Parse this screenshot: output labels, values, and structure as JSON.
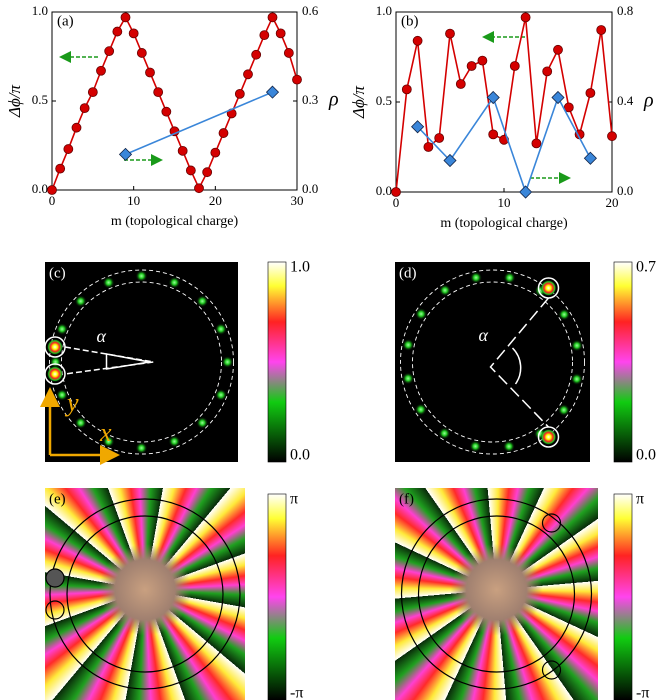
{
  "chart_data": [
    {
      "type": "line",
      "label": "(a)",
      "ylabel": "Δϕ/π",
      "y2label": "ρ",
      "xlabel": "m (topological charge)",
      "x": [
        0,
        1,
        2,
        3,
        4,
        5,
        6,
        7,
        8,
        9,
        10,
        11,
        12,
        13,
        14,
        15,
        16,
        17,
        18,
        19,
        20,
        21,
        22,
        23,
        24,
        25,
        26,
        27,
        28,
        29,
        30
      ],
      "series": [
        {
          "color": "#d40000",
          "marker": "circle",
          "values": [
            0,
            0.12,
            0.23,
            0.35,
            0.46,
            0.55,
            0.67,
            0.78,
            0.89,
            0.97,
            0.88,
            0.77,
            0.66,
            0.55,
            0.44,
            0.33,
            0.22,
            0.11,
            0.01,
            0.1,
            0.21,
            0.32,
            0.43,
            0.54,
            0.65,
            0.76,
            0.87,
            0.97,
            0.88,
            0.77,
            0.62
          ]
        },
        {
          "color": "#3a86d9",
          "marker": "diamond",
          "axis": "y2",
          "x": [
            9,
            27
          ],
          "values": [
            0.12,
            0.33
          ]
        }
      ],
      "xlim": [
        0,
        30
      ],
      "xticks": [
        0,
        10,
        20,
        30
      ],
      "ylim": [
        0,
        1
      ],
      "yticks": [
        {
          "value": 0,
          "label": "0.0"
        },
        {
          "value": 0.5,
          "label": "0.5"
        },
        {
          "value": 1,
          "label": "1.0"
        }
      ],
      "y2lim": [
        0,
        0.6
      ],
      "y2ticks": [
        {
          "value": 0,
          "label": "0.0"
        },
        {
          "value": 0.3,
          "label": "0.3"
        },
        {
          "value": 0.6,
          "label": "0.6"
        }
      ]
    },
    {
      "type": "line",
      "label": "(b)",
      "ylabel": "Δϕ/π",
      "y2label": "ρ",
      "xlabel": "m (topological charge)",
      "x": [
        0,
        1,
        2,
        3,
        4,
        5,
        6,
        7,
        8,
        9,
        10,
        11,
        12,
        13,
        14,
        15,
        16,
        17,
        18,
        19,
        20
      ],
      "series": [
        {
          "color": "#d40000",
          "marker": "circle",
          "values": [
            0,
            0.57,
            0.84,
            0.25,
            0.3,
            0.88,
            0.6,
            0.7,
            0.73,
            0.32,
            0.29,
            0.7,
            0.97,
            0.27,
            0.67,
            0.79,
            0.47,
            0.32,
            0.55,
            0.9,
            0.31
          ]
        },
        {
          "color": "#3a86d9",
          "marker": "diamond",
          "axis": "y2",
          "x": [
            2,
            5,
            9,
            12,
            15,
            18
          ],
          "values": [
            0.29,
            0.14,
            0.42,
            0,
            0.42,
            0.15
          ]
        }
      ],
      "xlim": [
        0,
        20
      ],
      "xticks": [
        0,
        10,
        20
      ],
      "ylim": [
        0,
        1
      ],
      "yticks": [
        {
          "value": 0,
          "label": "0.0"
        },
        {
          "value": 0.5,
          "label": "0.5"
        },
        {
          "value": 1,
          "label": "1.0"
        }
      ],
      "y2lim": [
        0,
        0.8
      ],
      "y2ticks": [
        {
          "value": 0,
          "label": "0.0"
        },
        {
          "value": 0.4,
          "label": "0.4"
        },
        {
          "value": 0.8,
          "label": "0.8"
        }
      ]
    }
  ],
  "panels": [
    {
      "label": "(c)",
      "kind": "intensity",
      "colorbar": [
        "1.0",
        "0.0"
      ],
      "angle": "α",
      "xaxis": "x",
      "yaxis": "y"
    },
    {
      "label": "(d)",
      "kind": "intensity",
      "colorbar": [
        "0.7",
        "0.0"
      ],
      "angle": "α"
    },
    {
      "label": "(e)",
      "kind": "phase",
      "colorbar": [
        "π",
        "-π"
      ]
    },
    {
      "label": "(f)",
      "kind": "phase",
      "colorbar": [
        "π",
        "-π"
      ]
    }
  ]
}
